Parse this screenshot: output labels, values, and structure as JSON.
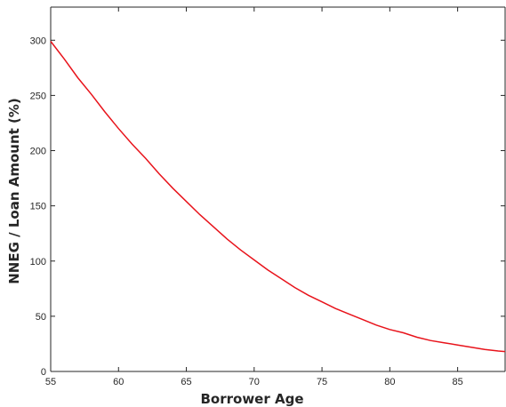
{
  "chart_data": {
    "type": "line",
    "title": "",
    "xlabel": "Borrower Age",
    "ylabel": "NNEG / Loan Amount (%)",
    "xlim": [
      55,
      88.5
    ],
    "ylim": [
      0,
      330
    ],
    "xticks": [
      55,
      60,
      65,
      70,
      75,
      80,
      85
    ],
    "yticks": [
      0,
      50,
      100,
      150,
      200,
      250,
      300
    ],
    "grid": false,
    "legend": "none",
    "series": [
      {
        "color": "#e8131b",
        "x": [
          55,
          56,
          57,
          58,
          59,
          60,
          61,
          62,
          63,
          64,
          65,
          66,
          67,
          68,
          69,
          70,
          71,
          72,
          73,
          74,
          75,
          76,
          77,
          78,
          79,
          80,
          81,
          82,
          83,
          84,
          85,
          86,
          87,
          88,
          88.5
        ],
        "y": [
          299,
          283,
          266,
          251,
          235,
          220,
          206,
          193,
          179,
          166,
          154,
          142,
          131,
          120,
          110,
          101,
          92,
          84,
          76,
          69,
          63,
          57,
          52,
          47,
          42,
          38,
          35,
          31,
          28,
          26,
          24,
          22,
          20,
          18.5,
          18
        ]
      }
    ]
  }
}
